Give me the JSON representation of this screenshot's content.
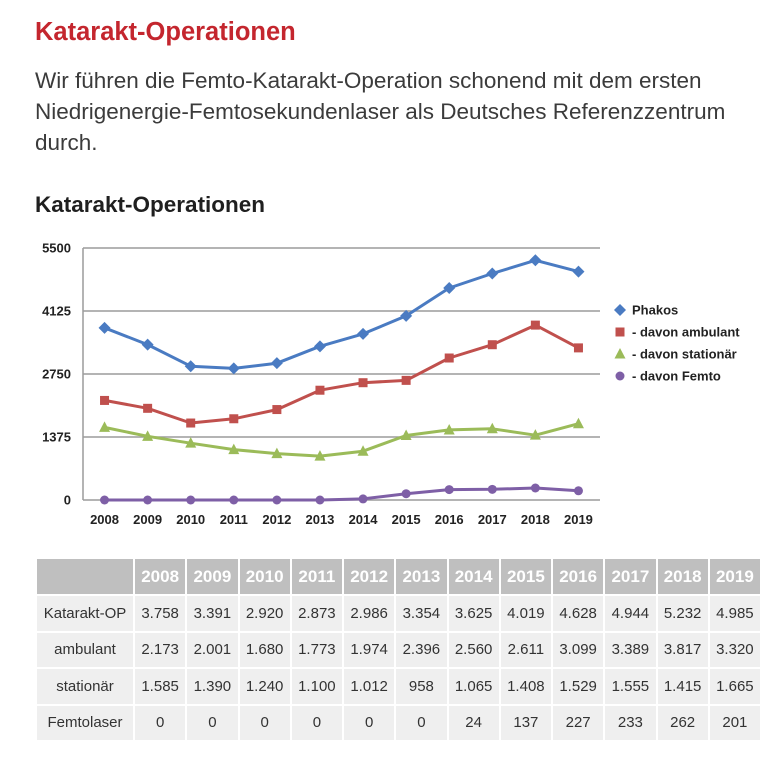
{
  "page": {
    "title": "Katarakt-Operationen",
    "intro": "Wir führen die Femto-Katarakt-Operation schonend mit dem ersten Niedrigenergie-Femtosekundenlaser als Deutsches Referenzzentrum durch."
  },
  "colors": {
    "title": "#c4262e",
    "text": "#3b3b3b",
    "heading": "#1f1f1f",
    "grid": "#9c9c9c",
    "table_header_bg": "#bfbfbf",
    "table_body_bg": "#efefef"
  },
  "chart_data": {
    "type": "line",
    "title": "Katarakt-Operationen",
    "categories": [
      "2008",
      "2009",
      "2010",
      "2011",
      "2012",
      "2013",
      "2014",
      "2015",
      "2016",
      "2017",
      "2018",
      "2019"
    ],
    "ylim": [
      0,
      5500
    ],
    "yticks": [
      0,
      1375,
      2750,
      4125,
      5500
    ],
    "grid": true,
    "legend": "right",
    "series": [
      {
        "name": "Phakos",
        "color": "#4a7bc2",
        "values": [
          3758,
          3391,
          2920,
          2873,
          2986,
          3354,
          3625,
          4019,
          4628,
          4944,
          5232,
          4985
        ]
      },
      {
        "name": "- davon ambulant",
        "color": "#c0504d",
        "values": [
          2173,
          2001,
          1680,
          1773,
          1974,
          2396,
          2560,
          2611,
          3099,
          3389,
          3817,
          3320
        ]
      },
      {
        "name": "- davon stationär",
        "color": "#9bbb59",
        "values": [
          1585,
          1390,
          1240,
          1100,
          1012,
          958,
          1065,
          1408,
          1529,
          1555,
          1415,
          1665
        ]
      },
      {
        "name": "- davon Femto",
        "color": "#7e5fa6",
        "values": [
          0,
          0,
          0,
          0,
          0,
          0,
          24,
          137,
          227,
          233,
          262,
          201
        ]
      }
    ]
  },
  "table": {
    "columns": [
      "2008",
      "2009",
      "2010",
      "2011",
      "2012",
      "2013",
      "2014",
      "2015",
      "2016",
      "2017",
      "2018",
      "2019"
    ],
    "rows": [
      {
        "label": "Katarakt-OP",
        "values": [
          "3.758",
          "3.391",
          "2.920",
          "2.873",
          "2.986",
          "3.354",
          "3.625",
          "4.019",
          "4.628",
          "4.944",
          "5.232",
          "4.985"
        ]
      },
      {
        "label": "ambulant",
        "values": [
          "2.173",
          "2.001",
          "1.680",
          "1.773",
          "1.974",
          "2.396",
          "2.560",
          "2.611",
          "3.099",
          "3.389",
          "3.817",
          "3.320"
        ]
      },
      {
        "label": "stationär",
        "values": [
          "1.585",
          "1.390",
          "1.240",
          "1.100",
          "1.012",
          "958",
          "1.065",
          "1.408",
          "1.529",
          "1.555",
          "1.415",
          "1.665"
        ]
      },
      {
        "label": "Femtolaser",
        "values": [
          "0",
          "0",
          "0",
          "0",
          "0",
          "0",
          "24",
          "137",
          "227",
          "233",
          "262",
          "201"
        ]
      }
    ]
  }
}
